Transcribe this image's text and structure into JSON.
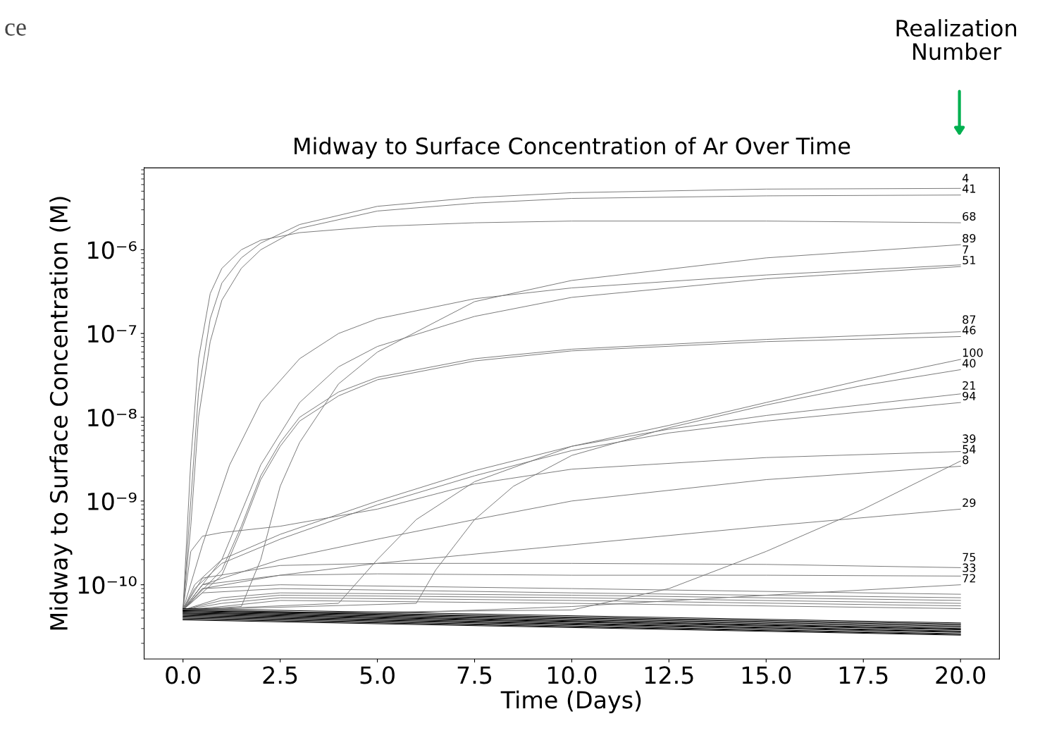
{
  "chart_data": {
    "type": "line",
    "title": "Midway to Surface Concentration of Ar Over Time",
    "xlabel": "Time (Days)",
    "ylabel": "Midway to Surface Concentration (M)",
    "log": "y",
    "grid": false,
    "legend": false,
    "marker": "none",
    "line_style": "solid",
    "xlim": [
      -1.0,
      21.0
    ],
    "xticks": [
      {
        "value": 0,
        "label": "0.0"
      },
      {
        "value": 2.5,
        "label": "2.5"
      },
      {
        "value": 5,
        "label": "5.0"
      },
      {
        "value": 7.5,
        "label": "7.5"
      },
      {
        "value": 10,
        "label": "10.0"
      },
      {
        "value": 12.5,
        "label": "12.5"
      },
      {
        "value": 15,
        "label": "15.0"
      },
      {
        "value": 17.5,
        "label": "17.5"
      },
      {
        "value": 20,
        "label": "20.0"
      }
    ],
    "ylim": [
      1.3e-11,
      9.5e-06
    ],
    "yticks": [
      {
        "value": 1e-10,
        "label": "10⁻¹⁰"
      },
      {
        "value": 1e-09,
        "label": "10⁻⁹"
      },
      {
        "value": 1e-08,
        "label": "10⁻⁸"
      },
      {
        "value": 1e-07,
        "label": "10⁻⁷"
      },
      {
        "value": 1e-06,
        "label": "10⁻⁶"
      }
    ],
    "annotations": [
      "ce",
      "Realization Number"
    ],
    "series": [
      {
        "name": "4",
        "color": "#777777",
        "x": [
          0,
          0.2,
          0.4,
          0.7,
          1,
          1.5,
          2,
          3,
          5,
          7.5,
          10,
          15,
          20
        ],
        "values": [
          5e-11,
          1e-09,
          2e-08,
          1.5e-07,
          4e-07,
          8e-07,
          1.2e-06,
          2e-06,
          3.3e-06,
          4.2e-06,
          4.8e-06,
          5.3e-06,
          5.4e-06
        ]
      },
      {
        "name": "41",
        "color": "#777777",
        "x": [
          0,
          0.2,
          0.4,
          0.7,
          1,
          1.5,
          2,
          3,
          5,
          7.5,
          10,
          15,
          20
        ],
        "values": [
          5e-11,
          5e-10,
          1e-08,
          8e-08,
          2.5e-07,
          6e-07,
          1e-06,
          1.8e-06,
          2.9e-06,
          3.6e-06,
          4.1e-06,
          4.4e-06,
          4.5e-06
        ]
      },
      {
        "name": "68",
        "color": "#777777",
        "x": [
          0,
          0.2,
          0.4,
          0.7,
          1,
          1.5,
          2,
          3,
          5,
          7.5,
          10,
          15,
          20
        ],
        "values": [
          5e-11,
          3e-09,
          5e-08,
          3e-07,
          6e-07,
          1e-06,
          1.3e-06,
          1.6e-06,
          1.9e-06,
          2.1e-06,
          2.2e-06,
          2.2e-06,
          2.1e-06
        ]
      },
      {
        "name": "89",
        "color": "#777777",
        "x": [
          0,
          1.5,
          2,
          2.5,
          3,
          4,
          5,
          7.5,
          10,
          15,
          20
        ],
        "values": [
          5e-11,
          5.5e-11,
          2e-10,
          1.5e-09,
          5e-09,
          2.5e-08,
          6e-08,
          2.4e-07,
          4.3e-07,
          8e-07,
          1.15e-06
        ]
      },
      {
        "name": "7",
        "color": "#777777",
        "x": [
          0,
          0.5,
          1.2,
          2,
          3,
          4,
          5,
          7.5,
          10,
          15,
          20
        ],
        "values": [
          5e-11,
          3e-10,
          2.7e-09,
          1.5e-08,
          5e-08,
          1e-07,
          1.5e-07,
          2.6e-07,
          3.5e-07,
          5e-07,
          6.6e-07
        ]
      },
      {
        "name": "51",
        "color": "#777777",
        "x": [
          0,
          1,
          2,
          3,
          4,
          5,
          7.5,
          10,
          15,
          20
        ],
        "values": [
          5e-11,
          2e-10,
          2.7e-09,
          1.5e-08,
          4e-08,
          7e-08,
          1.6e-07,
          2.7e-07,
          4.5e-07,
          6.3e-07
        ]
      },
      {
        "name": "87",
        "color": "#777777",
        "x": [
          0,
          1,
          1.5,
          2,
          2.5,
          3,
          4,
          5,
          7.5,
          10,
          15,
          20
        ],
        "values": [
          5e-11,
          1.5e-10,
          5e-10,
          2e-09,
          5e-09,
          1e-08,
          2e-08,
          3e-08,
          5e-08,
          6.5e-08,
          8.5e-08,
          1.05e-07
        ]
      },
      {
        "name": "46",
        "color": "#777777",
        "x": [
          0,
          1,
          1.5,
          2,
          2.5,
          3,
          4,
          5,
          7.5,
          10,
          15,
          20
        ],
        "values": [
          5e-11,
          1.3e-10,
          4.5e-10,
          1.8e-09,
          4.5e-09,
          9e-09,
          1.8e-08,
          2.8e-08,
          4.7e-08,
          6.2e-08,
          8e-08,
          9.2e-08
        ]
      },
      {
        "name": "100",
        "color": "#777777",
        "x": [
          0,
          4,
          5,
          6,
          7.5,
          10,
          12.5,
          15,
          17.5,
          20
        ],
        "values": [
          5e-11,
          6e-11,
          2e-10,
          6e-10,
          1.7e-09,
          4.5e-09,
          8e-09,
          1.5e-08,
          2.8e-08,
          4.9e-08
        ]
      },
      {
        "name": "40",
        "color": "#777777",
        "x": [
          0,
          6,
          6.5,
          7.5,
          8.5,
          10,
          12.5,
          15,
          17.5,
          20
        ],
        "values": [
          5e-11,
          6e-11,
          1.5e-10,
          6e-10,
          1.5e-09,
          3.5e-09,
          7.5e-09,
          1.4e-08,
          2.4e-08,
          3.7e-08
        ]
      },
      {
        "name": "21",
        "color": "#777777",
        "x": [
          0,
          0.3,
          1,
          2.5,
          5,
          7.5,
          10,
          12.5,
          15,
          20
        ],
        "values": [
          5e-11,
          1e-10,
          2e-10,
          4e-10,
          1e-09,
          2.3e-09,
          4.5e-09,
          7.2e-09,
          1.05e-08,
          1.9e-08
        ]
      },
      {
        "name": "94",
        "color": "#777777",
        "x": [
          0,
          0.3,
          1,
          2.5,
          5,
          7.5,
          10,
          12.5,
          15,
          20
        ],
        "values": [
          5e-11,
          9e-11,
          1.8e-10,
          3.5e-10,
          9e-10,
          2e-09,
          4e-09,
          6.5e-09,
          9e-09,
          1.5e-08
        ]
      },
      {
        "name": "39",
        "color": "#777777",
        "x": [
          0,
          0.2,
          0.5,
          1,
          2.5,
          5,
          7.5,
          10,
          15,
          20
        ],
        "values": [
          5e-11,
          2.5e-10,
          3.8e-10,
          4.2e-10,
          5e-10,
          8e-10,
          1.6e-09,
          2.4e-09,
          3.3e-09,
          3.9e-09
        ]
      },
      {
        "name": "54",
        "color": "#777777",
        "x": [
          0,
          10,
          12.5,
          15,
          17.5,
          20
        ],
        "values": [
          4.5e-11,
          5e-11,
          9e-11,
          2.5e-10,
          8e-10,
          3e-09
        ]
      },
      {
        "name": "8",
        "color": "#777777",
        "x": [
          0,
          0.5,
          2.5,
          5,
          7.5,
          10,
          15,
          20
        ],
        "values": [
          5e-11,
          1e-10,
          2e-10,
          3.5e-10,
          6e-10,
          1e-09,
          1.8e-09,
          2.6e-09
        ]
      },
      {
        "name": "29",
        "color": "#777777",
        "x": [
          0,
          0.5,
          2.5,
          5,
          10,
          15,
          20
        ],
        "values": [
          5e-11,
          9e-11,
          1.3e-10,
          1.8e-10,
          3e-10,
          5e-10,
          8e-10
        ]
      },
      {
        "name": "75",
        "color": "#777777",
        "x": [
          0,
          0.5,
          2.5,
          5,
          10,
          15,
          20
        ],
        "values": [
          5e-11,
          1.2e-10,
          1.7e-10,
          1.8e-10,
          1.8e-10,
          1.75e-10,
          1.6e-10
        ]
      },
      {
        "name": "33",
        "color": "#777777",
        "x": [
          0,
          0.5,
          2.5,
          5,
          10,
          15,
          20
        ],
        "values": [
          5e-11,
          1e-10,
          1.3e-10,
          1.35e-10,
          1.3e-10,
          1.3e-10,
          1.27e-10
        ]
      },
      {
        "name": "72",
        "color": "#777777",
        "x": [
          0,
          5,
          10,
          15,
          20
        ],
        "values": [
          5e-11,
          4.5e-11,
          5.5e-11,
          7.5e-11,
          1e-10
        ]
      },
      {
        "color": "#777777",
        "x": [
          0,
          0.5,
          2.5,
          10,
          20
        ],
        "values": [
          5e-11,
          9e-11,
          1e-10,
          9e-11,
          7.7e-11
        ]
      },
      {
        "color": "#777777",
        "x": [
          0,
          0.5,
          2.5,
          10,
          20
        ],
        "values": [
          5e-11,
          8e-11,
          9e-11,
          8e-11,
          7e-11
        ]
      },
      {
        "color": "#777777",
        "x": [
          0,
          1,
          2.5,
          10,
          20
        ],
        "values": [
          5e-11,
          7e-11,
          8e-11,
          7.5e-11,
          6.5e-11
        ]
      },
      {
        "color": "#777777",
        "x": [
          0,
          1,
          2.5,
          10,
          20
        ],
        "values": [
          5e-11,
          6.5e-11,
          7.5e-11,
          7e-11,
          6e-11
        ]
      },
      {
        "color": "#777777",
        "x": [
          0,
          1,
          2.5,
          10,
          20
        ],
        "values": [
          5e-11,
          6e-11,
          7e-11,
          6.5e-11,
          5.6e-11
        ]
      },
      {
        "color": "#777777",
        "x": [
          0,
          1,
          2.5,
          10,
          20
        ],
        "values": [
          5e-11,
          5.5e-11,
          6.5e-11,
          6e-11,
          5.2e-11
        ]
      },
      {
        "color": "#000000",
        "x": [
          0,
          20
        ],
        "values": [
          5.2e-11,
          3.5e-11
        ]
      },
      {
        "color": "#000000",
        "x": [
          0,
          20
        ],
        "values": [
          5e-11,
          3.4e-11
        ]
      },
      {
        "color": "#000000",
        "x": [
          0,
          20
        ],
        "values": [
          4.9e-11,
          3.3e-11
        ]
      },
      {
        "color": "#000000",
        "x": [
          0,
          20
        ],
        "values": [
          4.8e-11,
          3.2e-11
        ]
      },
      {
        "color": "#000000",
        "x": [
          0,
          20
        ],
        "values": [
          4.7e-11,
          3.1e-11
        ]
      },
      {
        "color": "#000000",
        "x": [
          0,
          20
        ],
        "values": [
          4.6e-11,
          3e-11
        ]
      },
      {
        "color": "#000000",
        "x": [
          0,
          20
        ],
        "values": [
          4.5e-11,
          2.95e-11
        ]
      },
      {
        "color": "#000000",
        "x": [
          0,
          20
        ],
        "values": [
          4.4e-11,
          2.9e-11
        ]
      },
      {
        "color": "#000000",
        "x": [
          0,
          20
        ],
        "values": [
          4.3e-11,
          2.8e-11
        ]
      },
      {
        "color": "#000000",
        "x": [
          0,
          20
        ],
        "values": [
          4.2e-11,
          2.75e-11
        ]
      },
      {
        "color": "#000000",
        "x": [
          0,
          20
        ],
        "values": [
          4.1e-11,
          2.7e-11
        ]
      },
      {
        "color": "#000000",
        "x": [
          0,
          20
        ],
        "values": [
          4e-11,
          2.6e-11
        ]
      },
      {
        "color": "#000000",
        "x": [
          0,
          20
        ],
        "values": [
          3.9e-11,
          2.55e-11
        ]
      },
      {
        "color": "#000000",
        "x": [
          0,
          20
        ],
        "values": [
          3.8e-11,
          2.5e-11
        ]
      }
    ]
  }
}
